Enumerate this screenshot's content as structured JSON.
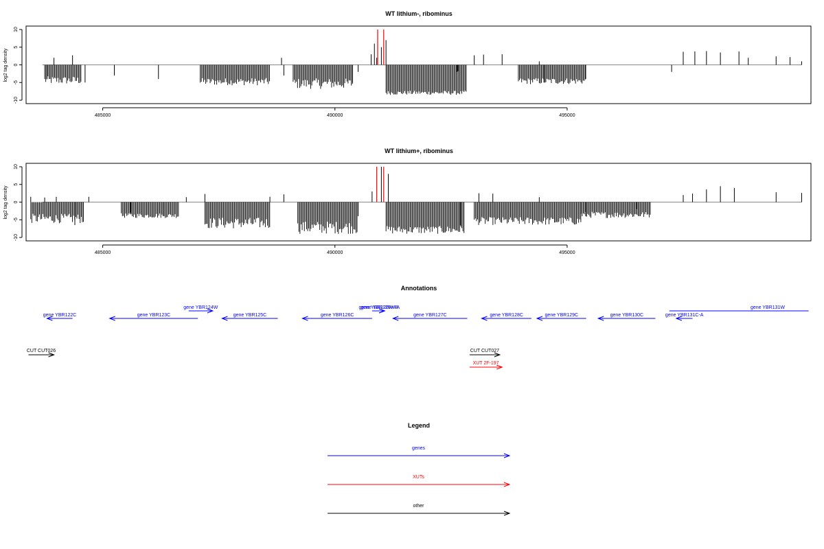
{
  "colors": {
    "gene": "#0000ff",
    "xut": "#ff0000",
    "other": "#000000",
    "axis": "#000000",
    "baseline": "#888888"
  },
  "chart_data": {
    "type": "bar",
    "xlim": [
      483350,
      500250
    ],
    "ylim": [
      -10,
      10
    ],
    "x_ticks": [
      485000,
      490000,
      495000
    ],
    "x_tick_labels": [
      "485000",
      "490000",
      "495000"
    ],
    "y_ticks": [
      10,
      5,
      0,
      -5,
      -10
    ],
    "y_tick_labels": [
      "10",
      "5",
      "0",
      "-5",
      "-10"
    ],
    "ylabel": "log2 tag density",
    "panels": [
      {
        "title": "WT lithium-, ribominus",
        "series": [
          {
            "name": "",
            "color": "#000000",
            "x": [
              483800,
              483950,
              484350,
              484620,
              485250,
              486200,
              488850,
              488900,
              490380,
              490500,
              490780,
              490850,
              490900,
              491000,
              491100,
              492620,
              492650,
              493000,
              493200,
              493600,
              494400,
              494500,
              495400,
              497250,
              497500,
              497750,
              498000,
              498300,
              498700,
              498900,
              499500,
              499800,
              500050
            ],
            "values": [
              -4,
              2,
              2.7,
              -5,
              -3,
              -4,
              2,
              -3,
              -5,
              -2,
              3,
              6,
              2,
              5,
              7,
              -2,
              -1.8,
              2.7,
              2.9,
              3,
              1,
              -5,
              -4,
              -2,
              3.7,
              3.8,
              3.9,
              3.5,
              3.8,
              2,
              2.4,
              2.2,
              1
            ]
          }
        ],
        "dense_blocks": [
          {
            "from": 483750,
            "to": 484550,
            "min": -5.5,
            "max": -3
          },
          {
            "from": 487100,
            "to": 488600,
            "min": -5.8,
            "max": -3.5
          },
          {
            "from": 489100,
            "to": 490400,
            "min": -6.8,
            "max": -3.5
          },
          {
            "from": 491100,
            "to": 492850,
            "min": -8.5,
            "max": -7.2
          },
          {
            "from": 493950,
            "to": 495400,
            "min": -5.5,
            "max": -3.5
          }
        ],
        "red_series": {
          "name": "",
          "color": "#ff0000",
          "x": [
            490920,
            491050
          ],
          "values": [
            10,
            10
          ]
        }
      },
      {
        "title": "WT lithium+, ribominus",
        "series": [
          {
            "name": "",
            "color": "#000000",
            "x": [
              483450,
              483750,
              484000,
              484400,
              484700,
              485600,
              486300,
              486800,
              487200,
              488600,
              488900,
              490500,
              490800,
              491000,
              491150,
              492700,
              493100,
              493400,
              494400,
              495400,
              496500,
              497500,
              497700,
              498000,
              498300,
              498600,
              499500,
              500050
            ],
            "values": [
              1.5,
              1.3,
              1.5,
              -6.5,
              1.5,
              -3,
              -4,
              1.4,
              2.3,
              1.5,
              2.2,
              -4,
              3,
              10,
              8,
              -6.5,
              2.5,
              2.4,
              1.4,
              -4,
              -2,
              2,
              2.4,
              3.6,
              4.5,
              4,
              2.8,
              2.6
            ]
          }
        ],
        "dense_blocks": [
          {
            "from": 483450,
            "to": 484600,
            "min": -6,
            "max": -3
          },
          {
            "from": 485400,
            "to": 486650,
            "min": -4.5,
            "max": -3
          },
          {
            "from": 487200,
            "to": 488600,
            "min": -7.5,
            "max": -4
          },
          {
            "from": 489200,
            "to": 490500,
            "min": -9,
            "max": -5
          },
          {
            "from": 491100,
            "to": 492800,
            "min": -9,
            "max": -6.5
          },
          {
            "from": 493000,
            "to": 495300,
            "min": -6.5,
            "max": -4
          },
          {
            "from": 495300,
            "to": 496800,
            "min": -4.5,
            "max": -2.5
          }
        ],
        "red_series": {
          "name": "",
          "color": "#ff0000",
          "x": [
            490900,
            491050
          ],
          "values": [
            10,
            10
          ]
        }
      }
    ]
  },
  "annotations": {
    "title": "Annotations",
    "features": [
      {
        "label": "gene YBR122C",
        "kind": "gene",
        "strand": "-",
        "start": 483800,
        "end": 484350,
        "row": 2
      },
      {
        "label": "gene YBR123C",
        "kind": "gene",
        "strand": "-",
        "start": 485150,
        "end": 487050,
        "row": 2
      },
      {
        "label": "gene YBR124W",
        "kind": "gene",
        "strand": "+",
        "start": 486850,
        "end": 487370,
        "row": 1
      },
      {
        "label": "gene YBR125C",
        "kind": "gene",
        "strand": "-",
        "start": 487570,
        "end": 488770,
        "row": 2
      },
      {
        "label": "gene YBR126C",
        "kind": "gene",
        "strand": "-",
        "start": 489300,
        "end": 490800,
        "row": 2
      },
      {
        "label": "gene YBR126W-B",
        "kind": "gene",
        "strand": "+",
        "start": 490800,
        "end": 491070,
        "row": 1
      },
      {
        "label": "gene YBR126W-A",
        "kind": "gene",
        "strand": "+",
        "start": 490880,
        "end": 491070,
        "row": 1
      },
      {
        "label": "gene YBR127C",
        "kind": "gene",
        "strand": "-",
        "start": 491250,
        "end": 492850,
        "row": 2
      },
      {
        "label": "gene YBR128C",
        "kind": "gene",
        "strand": "-",
        "start": 493160,
        "end": 494230,
        "row": 2
      },
      {
        "label": "gene YBR129C",
        "kind": "gene",
        "strand": "-",
        "start": 494350,
        "end": 495410,
        "row": 2
      },
      {
        "label": "gene YBR130C",
        "kind": "gene",
        "strand": "-",
        "start": 495670,
        "end": 496900,
        "row": 2
      },
      {
        "label": "gene YBR131W",
        "kind": "gene",
        "strand": "+",
        "start": 497200,
        "end": 500200,
        "row": 1
      },
      {
        "label": "gene YBR131C-A",
        "kind": "gene",
        "strand": "-",
        "start": 497350,
        "end": 497700,
        "row": 2
      },
      {
        "label": "CUT CUT026",
        "kind": "other",
        "strand": "+",
        "start": 483400,
        "end": 483950,
        "row": 3
      },
      {
        "label": "CUT CUT027",
        "kind": "other",
        "strand": "+",
        "start": 492900,
        "end": 493550,
        "row": 3
      },
      {
        "label": "XUT 2F-197",
        "kind": "xut",
        "strand": "+",
        "start": 492900,
        "end": 493600,
        "row": 4
      }
    ]
  },
  "legend": {
    "title": "Legend",
    "items": [
      {
        "label": "genes",
        "color": "#0000ff"
      },
      {
        "label": "XUTs",
        "color": "#ff0000"
      },
      {
        "label": "other",
        "color": "#000000"
      }
    ]
  }
}
